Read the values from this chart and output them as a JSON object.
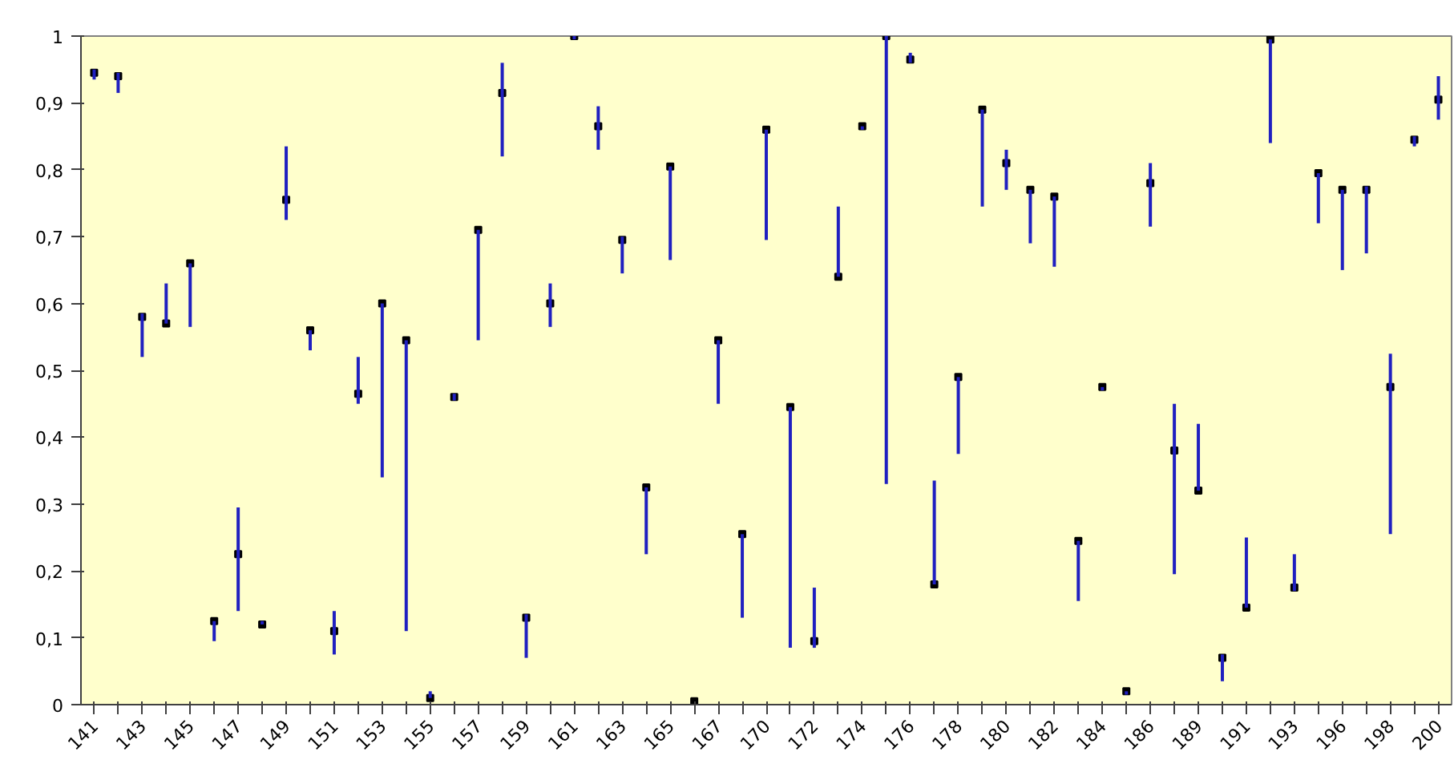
{
  "chart_data": {
    "type": "scatter",
    "categories": [
      "141",
      null,
      "143",
      null,
      "145",
      null,
      "147",
      null,
      "149",
      null,
      "151",
      null,
      "153",
      null,
      "155",
      null,
      "157",
      null,
      "159",
      null,
      "161",
      null,
      "163",
      null,
      "165",
      null,
      "167",
      null,
      "170",
      null,
      "172",
      null,
      "174",
      null,
      "176",
      null,
      "178",
      null,
      "180",
      null,
      "182",
      null,
      "184",
      null,
      "186",
      null,
      "189",
      null,
      "191",
      null,
      "193",
      null,
      "196",
      null,
      "198",
      null,
      "200"
    ],
    "ylim": [
      0,
      1
    ],
    "yticks": [
      0,
      {
        "value": 0.1,
        "label": "0,1"
      },
      {
        "value": 0.2,
        "label": "0,2"
      },
      {
        "value": 0.3,
        "label": "0,3"
      },
      {
        "value": 0.4,
        "label": "0,4"
      },
      {
        "value": 0.5,
        "label": "0,5"
      },
      {
        "value": 0.6,
        "label": "0,6"
      },
      {
        "value": 0.7,
        "label": "0,7"
      },
      {
        "value": 0.8,
        "label": "0,8"
      },
      {
        "value": 0.9,
        "label": "0,9"
      },
      1
    ],
    "grid": false,
    "marker": "square",
    "series": [
      {
        "color": "#000000",
        "values": [
          0.945,
          0.94,
          0.58,
          0.57,
          0.66,
          0.125,
          0.225,
          0.12,
          0.755,
          0.56,
          0.11,
          0.465,
          0.6,
          0.545,
          0.01,
          0.46,
          0.71,
          0.915,
          0.13,
          0.6,
          1.0,
          0.865,
          0.695,
          0.325,
          0.805,
          0.005,
          0.545,
          0.255,
          0.86,
          0.445,
          0.095,
          0.64,
          0.865,
          1.0,
          0.965,
          0.18,
          0.49,
          0.89,
          0.81,
          0.77,
          0.76,
          0.245,
          0.475,
          0.02,
          0.78,
          0.38,
          0.32,
          0.07,
          0.145,
          0.995,
          0.175,
          0.795,
          0.77,
          0.77,
          0.475,
          0.845,
          0.905
        ],
        "errors": [
          [
            0.935,
            0.95
          ],
          [
            0.915,
            0.945
          ],
          [
            0.52,
            0.585
          ],
          [
            0.57,
            0.63
          ],
          [
            0.565,
            0.66
          ],
          [
            0.095,
            0.125
          ],
          [
            0.14,
            0.295
          ],
          [
            0.12,
            0.125
          ],
          [
            0.725,
            0.835
          ],
          [
            0.53,
            0.56
          ],
          [
            0.075,
            0.14
          ],
          [
            0.45,
            0.52
          ],
          [
            0.34,
            0.6
          ],
          [
            0.11,
            0.545
          ],
          [
            0.01,
            0.02
          ],
          [
            0.455,
            0.465
          ],
          [
            0.545,
            0.71
          ],
          [
            0.82,
            0.96
          ],
          [
            0.07,
            0.135
          ],
          [
            0.565,
            0.63
          ],
          [
            0.995,
            1.0
          ],
          [
            0.83,
            0.895
          ],
          [
            0.645,
            0.7
          ],
          [
            0.225,
            0.325
          ],
          [
            0.665,
            0.805
          ],
          null,
          [
            0.45,
            0.545
          ],
          [
            0.13,
            0.255
          ],
          [
            0.695,
            0.86
          ],
          [
            0.085,
            0.445
          ],
          [
            0.085,
            0.175
          ],
          [
            0.64,
            0.745
          ],
          [
            0.86,
            0.865
          ],
          [
            0.33,
            1.0
          ],
          [
            0.96,
            0.975
          ],
          [
            0.18,
            0.335
          ],
          [
            0.375,
            0.49
          ],
          [
            0.745,
            0.89
          ],
          [
            0.77,
            0.83
          ],
          [
            0.69,
            0.77
          ],
          [
            0.655,
            0.76
          ],
          [
            0.155,
            0.245
          ],
          [
            0.47,
            0.475
          ],
          [
            0.015,
            0.02
          ],
          [
            0.715,
            0.81
          ],
          [
            0.195,
            0.45
          ],
          [
            0.32,
            0.42
          ],
          [
            0.035,
            0.075
          ],
          [
            0.145,
            0.25
          ],
          [
            0.84,
            0.995
          ],
          [
            0.17,
            0.225
          ],
          [
            0.72,
            0.795
          ],
          [
            0.65,
            0.77
          ],
          [
            0.675,
            0.775
          ],
          [
            0.255,
            0.525
          ],
          [
            0.835,
            0.85
          ],
          [
            0.875,
            0.94
          ]
        ]
      }
    ]
  }
}
